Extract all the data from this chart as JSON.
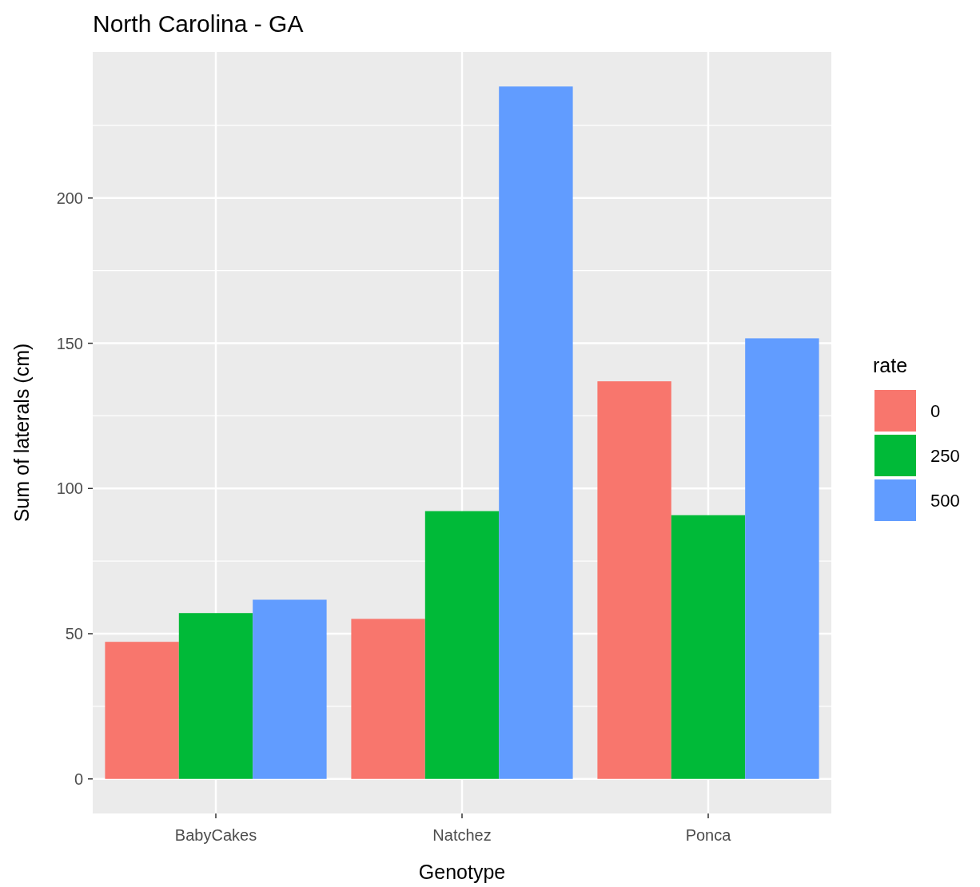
{
  "chart_data": {
    "type": "bar",
    "title": "North Carolina - GA",
    "xlabel": "Genotype",
    "ylabel": "Sum of laterals (cm)",
    "legend_title": "rate",
    "categories": [
      "BabyCakes",
      "Natchez",
      "Ponca"
    ],
    "series": [
      {
        "name": "0",
        "color": "#f8766d",
        "values": [
          47.2,
          55.1,
          136.9
        ]
      },
      {
        "name": "250",
        "color": "#00ba38",
        "values": [
          57.1,
          92.2,
          90.8
        ]
      },
      {
        "name": "500",
        "color": "#619cff",
        "values": [
          61.7,
          238.4,
          151.7
        ]
      }
    ],
    "ylim": [
      -11.9,
      250.3
    ],
    "yticks": [
      0,
      50,
      100,
      150,
      200
    ],
    "grid": true,
    "legend": "right"
  }
}
